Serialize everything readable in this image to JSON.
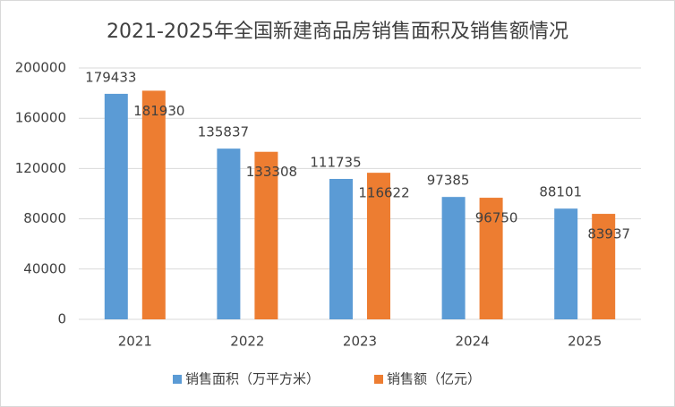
{
  "chart_data": {
    "type": "bar",
    "title": "2021-2025年全国新建商品房销售面积及销售额情况",
    "categories": [
      "2021",
      "2022",
      "2023",
      "2024",
      "2025"
    ],
    "series": [
      {
        "name": "销售面积（万平方米）",
        "color": "#5b9bd5",
        "values": [
          179433,
          135837,
          111735,
          97385,
          88101
        ]
      },
      {
        "name": "销售额（亿元）",
        "color": "#ed7d31",
        "values": [
          181930,
          133308,
          116622,
          96750,
          83937
        ]
      }
    ],
    "ylim": [
      0,
      200000
    ],
    "yticks": [
      0,
      40000,
      80000,
      120000,
      160000,
      200000
    ],
    "grid": true,
    "legend": "bottom"
  }
}
